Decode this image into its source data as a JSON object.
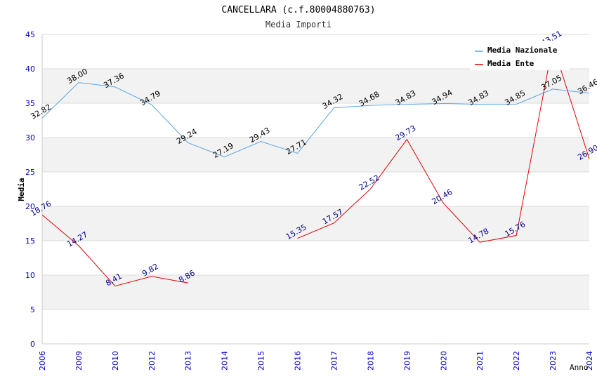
{
  "chart_data": {
    "type": "line",
    "title": "CANCELLARA (c.f.80004880763)",
    "subtitle": "Media Importi",
    "xlabel": "Anno",
    "ylabel": "Media",
    "ylim": [
      0,
      45
    ],
    "yticks": [
      0,
      5,
      10,
      15,
      20,
      25,
      30,
      35,
      40,
      45
    ],
    "categories": [
      "2006",
      "2009",
      "2010",
      "2012",
      "2013",
      "2014",
      "2015",
      "2016",
      "2017",
      "2018",
      "2019",
      "2020",
      "2021",
      "2022",
      "2023",
      "2024"
    ],
    "tick_labels": [
      "0",
      "5",
      "10",
      "15",
      "20",
      "25",
      "30",
      "35",
      "40",
      "45"
    ],
    "series": [
      {
        "name": "Media Nazionale",
        "color": "#5aa5e6",
        "label_color": "#000000",
        "values": [
          32.82,
          38.0,
          37.36,
          34.79,
          29.24,
          27.19,
          29.43,
          27.71,
          34.32,
          34.68,
          34.83,
          34.94,
          34.83,
          34.85,
          37.05,
          36.46
        ],
        "labels": [
          "32.82",
          "38.00",
          "37.36",
          "34.79",
          "29.24",
          "27.19",
          "29.43",
          "27.71",
          "34.32",
          "34.68",
          "34.83",
          "34.94",
          "34.83",
          "34.85",
          "37.05",
          "36.46"
        ]
      },
      {
        "name": "Media Ente",
        "color": "#e00000",
        "label_color": "#00008b",
        "values": [
          18.76,
          14.27,
          8.41,
          9.82,
          8.86,
          null,
          null,
          15.35,
          17.57,
          22.52,
          29.73,
          20.46,
          14.78,
          15.76,
          43.51,
          26.9
        ],
        "labels": [
          "18.76",
          "14.27",
          "8.41",
          "9.82",
          "8.86",
          null,
          null,
          "15.35",
          "17.57",
          "22.52",
          "29.73",
          "20.46",
          "14.78",
          "15.76",
          "43.51",
          "26.90"
        ]
      }
    ],
    "legend": {
      "position": "top-right"
    }
  },
  "colors": {
    "band": "#f2f2f2",
    "grid": "#dcdcdc",
    "axis_text": "#0000cc",
    "title_text": "#000000"
  }
}
